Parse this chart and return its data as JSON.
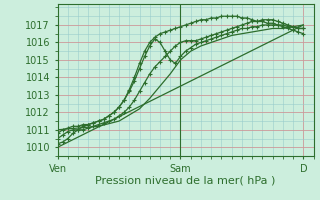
{
  "xlabel": "Pression niveau de la mer( hPa )",
  "bg_color": "#cceedd",
  "plot_bg_color": "#cceedd",
  "grid_color_major": "#cc9999",
  "grid_color_minor": "#99cccc",
  "line_color": "#2d6e2d",
  "ylim": [
    1009.5,
    1018.2
  ],
  "xlim": [
    0,
    50
  ],
  "yticks": [
    1010,
    1011,
    1012,
    1013,
    1014,
    1015,
    1016,
    1017
  ],
  "xtick_positions": [
    0,
    24,
    48
  ],
  "xtick_labels": [
    "Ven",
    "Sam",
    "D"
  ],
  "series": [
    {
      "x": [
        0,
        48
      ],
      "y": [
        1010.0,
        1017.0
      ],
      "marker": false,
      "lw": 0.9
    },
    {
      "x": [
        0,
        4,
        8,
        12,
        16,
        18,
        20,
        22,
        24,
        26,
        28,
        30,
        32,
        34,
        36,
        38,
        40,
        42,
        44,
        46,
        48
      ],
      "y": [
        1011.0,
        1011.1,
        1011.2,
        1011.5,
        1012.2,
        1012.8,
        1013.5,
        1014.2,
        1015.0,
        1015.5,
        1015.8,
        1016.0,
        1016.2,
        1016.4,
        1016.5,
        1016.6,
        1016.7,
        1016.8,
        1016.8,
        1016.9,
        1017.0
      ],
      "marker": false,
      "lw": 0.9
    },
    {
      "x": [
        0,
        1,
        2,
        3,
        4,
        5,
        6,
        7,
        8,
        9,
        10,
        11,
        12,
        13,
        14,
        15,
        16,
        17,
        18,
        19,
        20,
        21,
        22,
        23,
        24,
        25,
        26,
        27,
        28,
        29,
        30,
        31,
        32,
        33,
        34,
        35,
        36,
        37,
        38,
        39,
        40,
        41,
        42,
        43,
        44,
        45,
        46,
        47,
        48
      ],
      "y": [
        1010.5,
        1010.7,
        1010.9,
        1011.0,
        1011.0,
        1011.0,
        1011.1,
        1011.2,
        1011.3,
        1011.4,
        1011.5,
        1011.6,
        1011.8,
        1012.0,
        1012.3,
        1012.7,
        1013.2,
        1013.7,
        1014.2,
        1014.6,
        1014.9,
        1015.2,
        1015.5,
        1015.8,
        1016.0,
        1016.1,
        1016.1,
        1016.1,
        1016.2,
        1016.3,
        1016.4,
        1016.5,
        1016.6,
        1016.7,
        1016.8,
        1016.9,
        1017.0,
        1017.1,
        1017.2,
        1017.2,
        1017.3,
        1017.3,
        1017.3,
        1017.2,
        1017.1,
        1017.0,
        1016.9,
        1016.8,
        1016.8
      ],
      "marker": true,
      "lw": 0.9
    },
    {
      "x": [
        0,
        1,
        2,
        3,
        4,
        5,
        6,
        7,
        8,
        9,
        10,
        11,
        12,
        13,
        14,
        15,
        16,
        17,
        18,
        19,
        20,
        21,
        22,
        23,
        24,
        25,
        26,
        27,
        28,
        29,
        30,
        31,
        32,
        33,
        34,
        35,
        36,
        37,
        38,
        39,
        40,
        41,
        42,
        43,
        44,
        45,
        46,
        47,
        48
      ],
      "y": [
        1010.8,
        1011.0,
        1011.1,
        1011.2,
        1011.2,
        1011.3,
        1011.3,
        1011.4,
        1011.5,
        1011.6,
        1011.8,
        1012.0,
        1012.3,
        1012.7,
        1013.2,
        1013.8,
        1014.5,
        1015.2,
        1015.8,
        1016.2,
        1016.0,
        1015.5,
        1015.0,
        1014.8,
        1015.2,
        1015.5,
        1015.7,
        1015.9,
        1016.0,
        1016.1,
        1016.2,
        1016.3,
        1016.4,
        1016.5,
        1016.6,
        1016.7,
        1016.8,
        1016.8,
        1016.9,
        1016.9,
        1017.0,
        1017.0,
        1017.0,
        1017.0,
        1016.9,
        1016.8,
        1016.7,
        1016.6,
        1016.5
      ],
      "marker": true,
      "lw": 0.9
    },
    {
      "x": [
        0,
        1,
        2,
        3,
        4,
        5,
        6,
        7,
        8,
        9,
        10,
        11,
        12,
        13,
        14,
        15,
        16,
        17,
        18,
        19,
        20,
        21,
        22,
        23,
        24,
        25,
        26,
        27,
        28,
        29,
        30,
        31,
        32,
        33,
        34,
        35,
        36,
        37,
        38,
        39,
        40,
        41,
        42,
        43,
        44,
        45,
        46,
        47,
        48
      ],
      "y": [
        1010.2,
        1010.3,
        1010.5,
        1010.8,
        1011.0,
        1011.2,
        1011.3,
        1011.4,
        1011.5,
        1011.6,
        1011.8,
        1012.0,
        1012.3,
        1012.7,
        1013.3,
        1014.0,
        1014.8,
        1015.5,
        1016.0,
        1016.3,
        1016.5,
        1016.6,
        1016.7,
        1016.8,
        1016.9,
        1017.0,
        1017.1,
        1017.2,
        1017.3,
        1017.3,
        1017.4,
        1017.4,
        1017.5,
        1017.5,
        1017.5,
        1017.5,
        1017.4,
        1017.4,
        1017.3,
        1017.2,
        1017.2,
        1017.1,
        1017.1,
        1017.0,
        1017.0,
        1016.9,
        1016.9,
        1016.8,
        1016.8
      ],
      "marker": true,
      "lw": 0.9
    }
  ]
}
